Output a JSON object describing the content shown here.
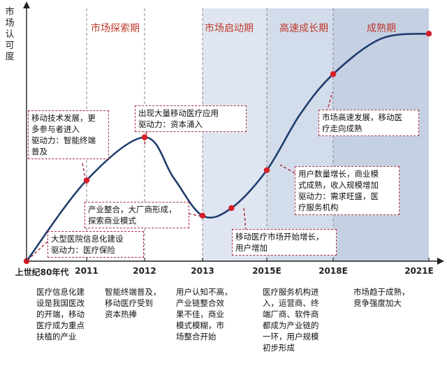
{
  "y_axis_label": "市场认可度",
  "phases": [
    {
      "label": "市场探索期",
      "start": 0,
      "end": 3,
      "shade": "#ffffff"
    },
    {
      "label": "市场启动期",
      "start": 3,
      "end": 4,
      "shade": "#dfe6f1"
    },
    {
      "label": "高速成长期",
      "start": 4,
      "end": 5,
      "shade": "#d3dcea"
    },
    {
      "label": "成熟期",
      "start": 5,
      "end": 6,
      "shade": "#c5d0e3"
    }
  ],
  "chart_data": {
    "type": "line",
    "title": "",
    "xlabel": "",
    "ylabel": "市场认可度",
    "categories": [
      "上世纪80年代",
      "2011",
      "2012",
      "2013",
      "2015E",
      "2018E",
      "2021E"
    ],
    "category_positions": [
      0,
      1,
      2,
      3,
      4,
      5,
      6
    ],
    "xlim": [
      0,
      6
    ],
    "ylim": [
      0,
      100
    ],
    "curve": [
      {
        "x": 0.0,
        "y": 0
      },
      {
        "x": 1.0,
        "y": 32
      },
      {
        "x": 2.0,
        "y": 49
      },
      {
        "x": 2.5,
        "y": 33
      },
      {
        "x": 3.0,
        "y": 18
      },
      {
        "x": 3.45,
        "y": 21
      },
      {
        "x": 4.0,
        "y": 36
      },
      {
        "x": 4.5,
        "y": 58
      },
      {
        "x": 5.0,
        "y": 74
      },
      {
        "x": 5.5,
        "y": 88
      },
      {
        "x": 6.0,
        "y": 90
      }
    ],
    "markers": [
      {
        "x": 1.0,
        "y": 32
      },
      {
        "x": 2.0,
        "y": 49
      },
      {
        "x": 3.0,
        "y": 18
      },
      {
        "x": 3.45,
        "y": 21
      },
      {
        "x": 4.0,
        "y": 36
      },
      {
        "x": 5.0,
        "y": 74
      },
      {
        "x": 6.0,
        "y": 90
      }
    ],
    "line_color": "#1f3d6e",
    "marker_color": "#d81e28"
  },
  "callouts": [
    {
      "lines": [
        "移动技术发展，更",
        "多参与者进入",
        "驱动力：智能终端",
        "普及"
      ]
    },
    {
      "lines": [
        "出现大量移动医疗应用",
        "驱动力：资本涌入"
      ]
    },
    {
      "lines": [
        "产业整合，大厂商形成，",
        "探索商业模式"
      ]
    },
    {
      "lines": [
        "大型医院信息化建设",
        "驱动力：医疗保险"
      ]
    },
    {
      "lines": [
        "移动医疗市场开始增长，",
        "用户增加"
      ]
    },
    {
      "lines": [
        "用户数量增长，商业模",
        "式成熟，收入规模增加",
        "驱动力：需求旺盛，医",
        "疗服务机构"
      ]
    },
    {
      "lines": [
        "市场高速发展，移动医",
        "疗走向成熟"
      ]
    }
  ],
  "descriptions": [
    {
      "lines": [
        "医疗信息化建",
        "设是我国医改",
        "的开端，移动",
        "医疗成为重点",
        "扶植的产业"
      ]
    },
    {
      "lines": [
        "智能终端普及，",
        "移动医疗受到",
        "资本热捧"
      ]
    },
    {
      "lines": [
        "用户认知不高，",
        "产业链整合效",
        "果不佳，商业",
        "模式模糊，市",
        "场整合开始"
      ]
    },
    {
      "lines": [
        "医疗服务机构进",
        "入，运营商、终",
        "端厂商、软件商",
        "都成为产业链的",
        "一环，用户规模",
        "初步形成"
      ]
    },
    {
      "lines": [
        "市场趋于成熟，",
        "竞争强度加大"
      ]
    }
  ]
}
